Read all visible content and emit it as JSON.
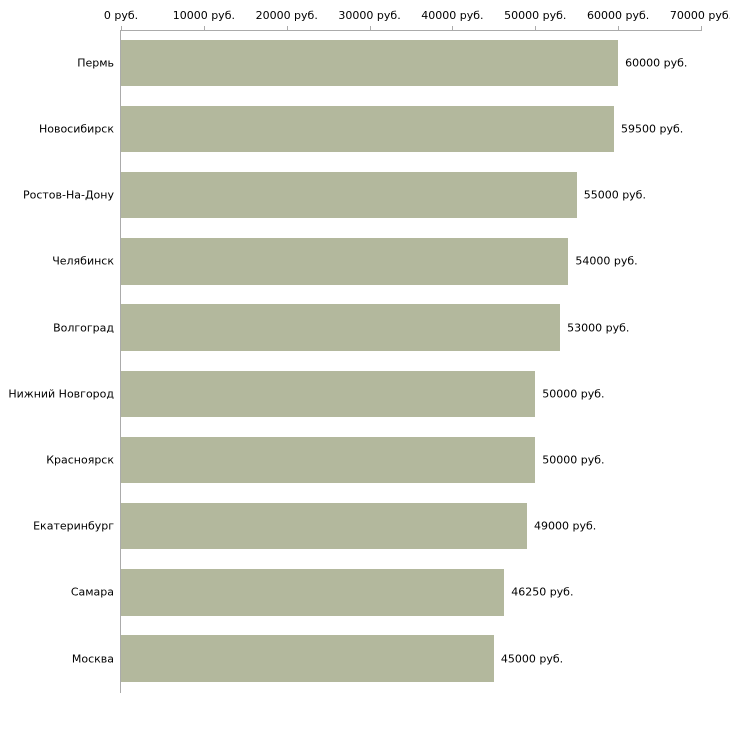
{
  "chart_data": {
    "type": "bar",
    "orientation": "horizontal",
    "title": "",
    "xlabel": "",
    "ylabel": "",
    "categories": [
      "Пермь",
      "Новосибирск",
      "Ростов-На-Дону",
      "Челябинск",
      "Волгоград",
      "Нижний Новгород",
      "Красноярск",
      "Екатеринбург",
      "Самара",
      "Москва"
    ],
    "values": [
      60000,
      59500,
      55000,
      54000,
      53000,
      50000,
      50000,
      49000,
      46250,
      45000
    ],
    "value_labels": [
      "60000 руб.",
      "59500 руб.",
      "55000 руб.",
      "54000 руб.",
      "53000 руб.",
      "50000 руб.",
      "50000 руб.",
      "49000 руб.",
      "46250 руб.",
      "45000 руб."
    ],
    "x_ticks": [
      "0 руб.",
      "10000 руб.",
      "20000 руб.",
      "30000 руб.",
      "40000 руб.",
      "50000 руб.",
      "60000 руб.",
      "70000 руб."
    ],
    "x_tick_values": [
      0,
      10000,
      20000,
      30000,
      40000,
      50000,
      60000,
      70000
    ],
    "xlim": [
      0,
      70000
    ],
    "grid": false,
    "legend": false,
    "bar_color": "#b3b89d",
    "axis_color": "#ababab",
    "text_color": "#000000"
  }
}
